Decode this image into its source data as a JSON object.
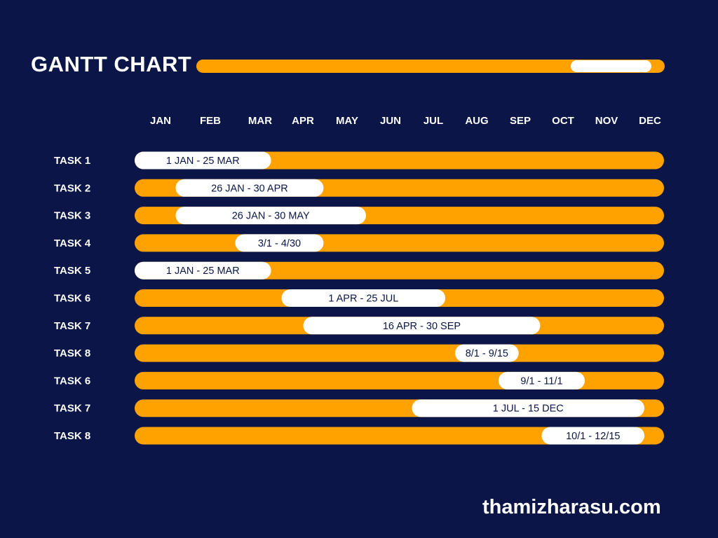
{
  "header": {
    "title": "GANTT CHART"
  },
  "brand": "thamizharasu.com",
  "colors": {
    "background": "#0b1547",
    "track": "#ffa200",
    "bar": "#ffffff",
    "text_light": "#ffffff",
    "text_dark": "#0b1547"
  },
  "chart_data": {
    "type": "bar",
    "subtype": "gantt",
    "title": "GANTT CHART",
    "months": [
      "JAN",
      "FEB",
      "MAR",
      "APR",
      "MAY",
      "JUN",
      "JUL",
      "AUG",
      "SEP",
      "OCT",
      "NOV",
      "DEC"
    ],
    "tasks": [
      {
        "name": "TASK 1",
        "label": "1 JAN - 25 MAR",
        "start": "01-01",
        "end": "03-25"
      },
      {
        "name": "TASK 2",
        "label": "26 JAN - 30 APR",
        "start": "01-26",
        "end": "04-30"
      },
      {
        "name": "TASK 3",
        "label": "26 JAN - 30 MAY",
        "start": "01-26",
        "end": "05-30"
      },
      {
        "name": "TASK 4",
        "label": "3/1 - 4/30",
        "start": "03-01",
        "end": "04-30"
      },
      {
        "name": "TASK 5",
        "label": "1 JAN - 25 MAR",
        "start": "01-01",
        "end": "03-25"
      },
      {
        "name": "TASK 6",
        "label": "1 APR - 25 JUL",
        "start": "04-01",
        "end": "07-25"
      },
      {
        "name": "TASK 7",
        "label": "16 APR - 30 SEP",
        "start": "04-16",
        "end": "09-30"
      },
      {
        "name": "TASK 8",
        "label": "8/1 - 9/15",
        "start": "08-01",
        "end": "09-15"
      },
      {
        "name": "TASK 6",
        "label": "9/1 - 11/1",
        "start": "09-01",
        "end": "11-01"
      },
      {
        "name": "TASK 7",
        "label": "1 JUL - 15 DEC",
        "start": "07-01",
        "end": "12-15"
      },
      {
        "name": "TASK 8",
        "label": "10/1 - 12/15",
        "start": "10-01",
        "end": "12-15"
      }
    ]
  }
}
